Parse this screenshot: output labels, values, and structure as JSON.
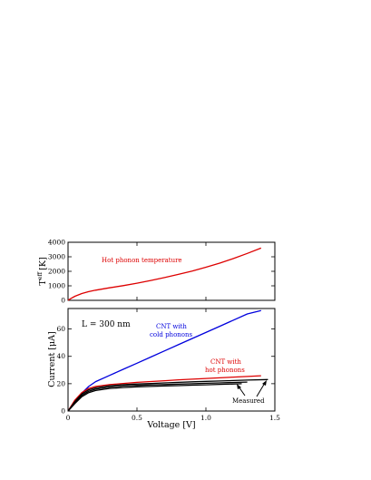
{
  "chart_data": [
    {
      "type": "line",
      "panel": "top",
      "ylabel": "T",
      "ylabel_sup": "eff",
      "ylabel_unit": "[K]",
      "xlim": [
        0,
        1.5
      ],
      "ylim": [
        0,
        4000
      ],
      "yticks": [
        "0",
        "1000",
        "2000",
        "3000",
        "4000"
      ],
      "annotations": [
        {
          "text": "Hot phonon temperature",
          "color": "#dd0000"
        }
      ],
      "series": [
        {
          "color": "#dd0000",
          "x": [
            0,
            0.02,
            0.05,
            0.1,
            0.15,
            0.2,
            0.3,
            0.4,
            0.5,
            0.6,
            0.7,
            0.8,
            0.9,
            1.0,
            1.1,
            1.2,
            1.3,
            1.4
          ],
          "y": [
            0,
            120,
            280,
            470,
            600,
            700,
            860,
            1010,
            1180,
            1370,
            1570,
            1790,
            2020,
            2280,
            2560,
            2880,
            3230,
            3600
          ]
        }
      ]
    },
    {
      "type": "line",
      "panel": "bottom",
      "xlabel": "Voltage [V]",
      "ylabel": "Current [μA]",
      "xlim": [
        0,
        1.5
      ],
      "ylim": [
        0,
        75
      ],
      "xticks": [
        "0",
        "0.5",
        "1.0",
        "1.5"
      ],
      "yticks": [
        "0",
        "20",
        "40",
        "60"
      ],
      "annotations": [
        {
          "text": "L = 300 nm",
          "color": "#000000"
        },
        {
          "text": "CNT with",
          "color": "#0000dd"
        },
        {
          "text": "cold phonons",
          "color": "#0000dd"
        },
        {
          "text": "CNT with",
          "color": "#dd0000"
        },
        {
          "text": "hot phonons",
          "color": "#dd0000"
        },
        {
          "text": "Measured",
          "color": "#000000"
        }
      ],
      "series": [
        {
          "color": "#0000dd",
          "x": [
            0,
            0.05,
            0.1,
            0.15,
            0.2,
            0.3,
            0.4,
            0.5,
            0.6,
            0.7,
            0.8,
            0.9,
            1.0,
            1.1,
            1.2,
            1.3,
            1.4
          ],
          "y": [
            0,
            7,
            13,
            18,
            21.5,
            26,
            30.5,
            35,
            39.5,
            44,
            48.5,
            53,
            57.5,
            62,
            66.5,
            71,
            73.5
          ]
        },
        {
          "color": "#dd0000",
          "x": [
            0,
            0.05,
            0.1,
            0.15,
            0.2,
            0.3,
            0.4,
            0.5,
            0.6,
            0.7,
            0.8,
            0.9,
            1.0,
            1.1,
            1.2,
            1.3,
            1.4
          ],
          "y": [
            0,
            8,
            13.5,
            16.5,
            18,
            19.3,
            20.2,
            21,
            21.6,
            22.2,
            22.8,
            23.3,
            23.8,
            24.3,
            24.8,
            25.3,
            25.8
          ]
        },
        {
          "color": "#000000",
          "x": [
            0,
            0.05,
            0.1,
            0.15,
            0.2,
            0.3,
            0.4,
            0.5,
            0.6,
            0.7,
            0.8,
            0.9,
            1.0,
            1.1,
            1.2,
            1.3,
            1.45
          ],
          "y": [
            0,
            7,
            12.5,
            15.5,
            17,
            18.5,
            19.3,
            19.8,
            20.2,
            20.6,
            21,
            21.4,
            21.7,
            22,
            22.3,
            22.6,
            23
          ]
        },
        {
          "color": "#000000",
          "x": [
            0,
            0.05,
            0.1,
            0.15,
            0.2,
            0.3,
            0.4,
            0.5,
            0.6,
            0.7,
            0.8,
            0.9,
            1.0,
            1.1,
            1.2,
            1.3
          ],
          "y": [
            0,
            6,
            11.5,
            14.5,
            16,
            17.5,
            18.3,
            18.8,
            19.1,
            19.4,
            19.7,
            20,
            20.3,
            20.6,
            20.9,
            21.2
          ]
        },
        {
          "color": "#000000",
          "x": [
            0,
            0.05,
            0.1,
            0.15,
            0.2,
            0.3,
            0.4,
            0.5,
            0.6,
            0.7,
            0.8,
            0.9,
            1.0,
            1.1,
            1.2,
            1.26
          ],
          "y": [
            0,
            5.5,
            10.5,
            13.5,
            15,
            16.5,
            17.2,
            17.7,
            18,
            18.3,
            18.6,
            18.9,
            19.2,
            19.5,
            19.8,
            20
          ]
        }
      ]
    }
  ]
}
